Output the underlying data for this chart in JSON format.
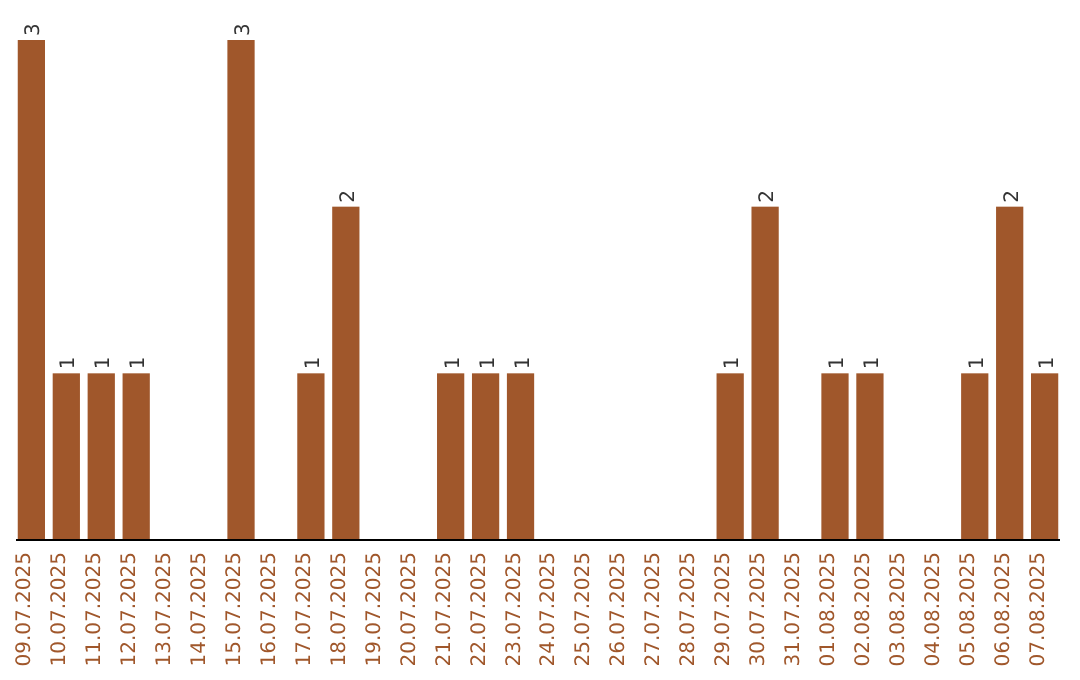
{
  "chart_data": {
    "type": "bar",
    "color": "#a0572b",
    "categories": [
      "09.07.2025",
      "10.07.2025",
      "11.07.2025",
      "12.07.2025",
      "13.07.2025",
      "14.07.2025",
      "15.07.2025",
      "16.07.2025",
      "17.07.2025",
      "18.07.2025",
      "19.07.2025",
      "20.07.2025",
      "21.07.2025",
      "22.07.2025",
      "23.07.2025",
      "24.07.2025",
      "25.07.2025",
      "26.07.2025",
      "27.07.2025",
      "28.07.2025",
      "29.07.2025",
      "30.07.2025",
      "31.07.2025",
      "01.08.2025",
      "02.08.2025",
      "03.08.2025",
      "04.08.2025",
      "05.08.2025",
      "06.08.2025",
      "07.08.2025"
    ],
    "values": [
      3,
      1,
      1,
      1,
      0,
      0,
      3,
      0,
      1,
      2,
      0,
      0,
      1,
      1,
      1,
      0,
      0,
      0,
      0,
      0,
      1,
      2,
      0,
      1,
      1,
      0,
      0,
      1,
      2,
      1
    ],
    "value_labels": [
      "3",
      "1",
      "1",
      "1",
      null,
      null,
      "3",
      null,
      "1",
      "2",
      null,
      null,
      "1",
      "1",
      "1",
      null,
      null,
      null,
      null,
      null,
      "1",
      "2",
      null,
      "1",
      "1",
      null,
      null,
      "1",
      "2",
      "1"
    ],
    "data_labels": false
  }
}
